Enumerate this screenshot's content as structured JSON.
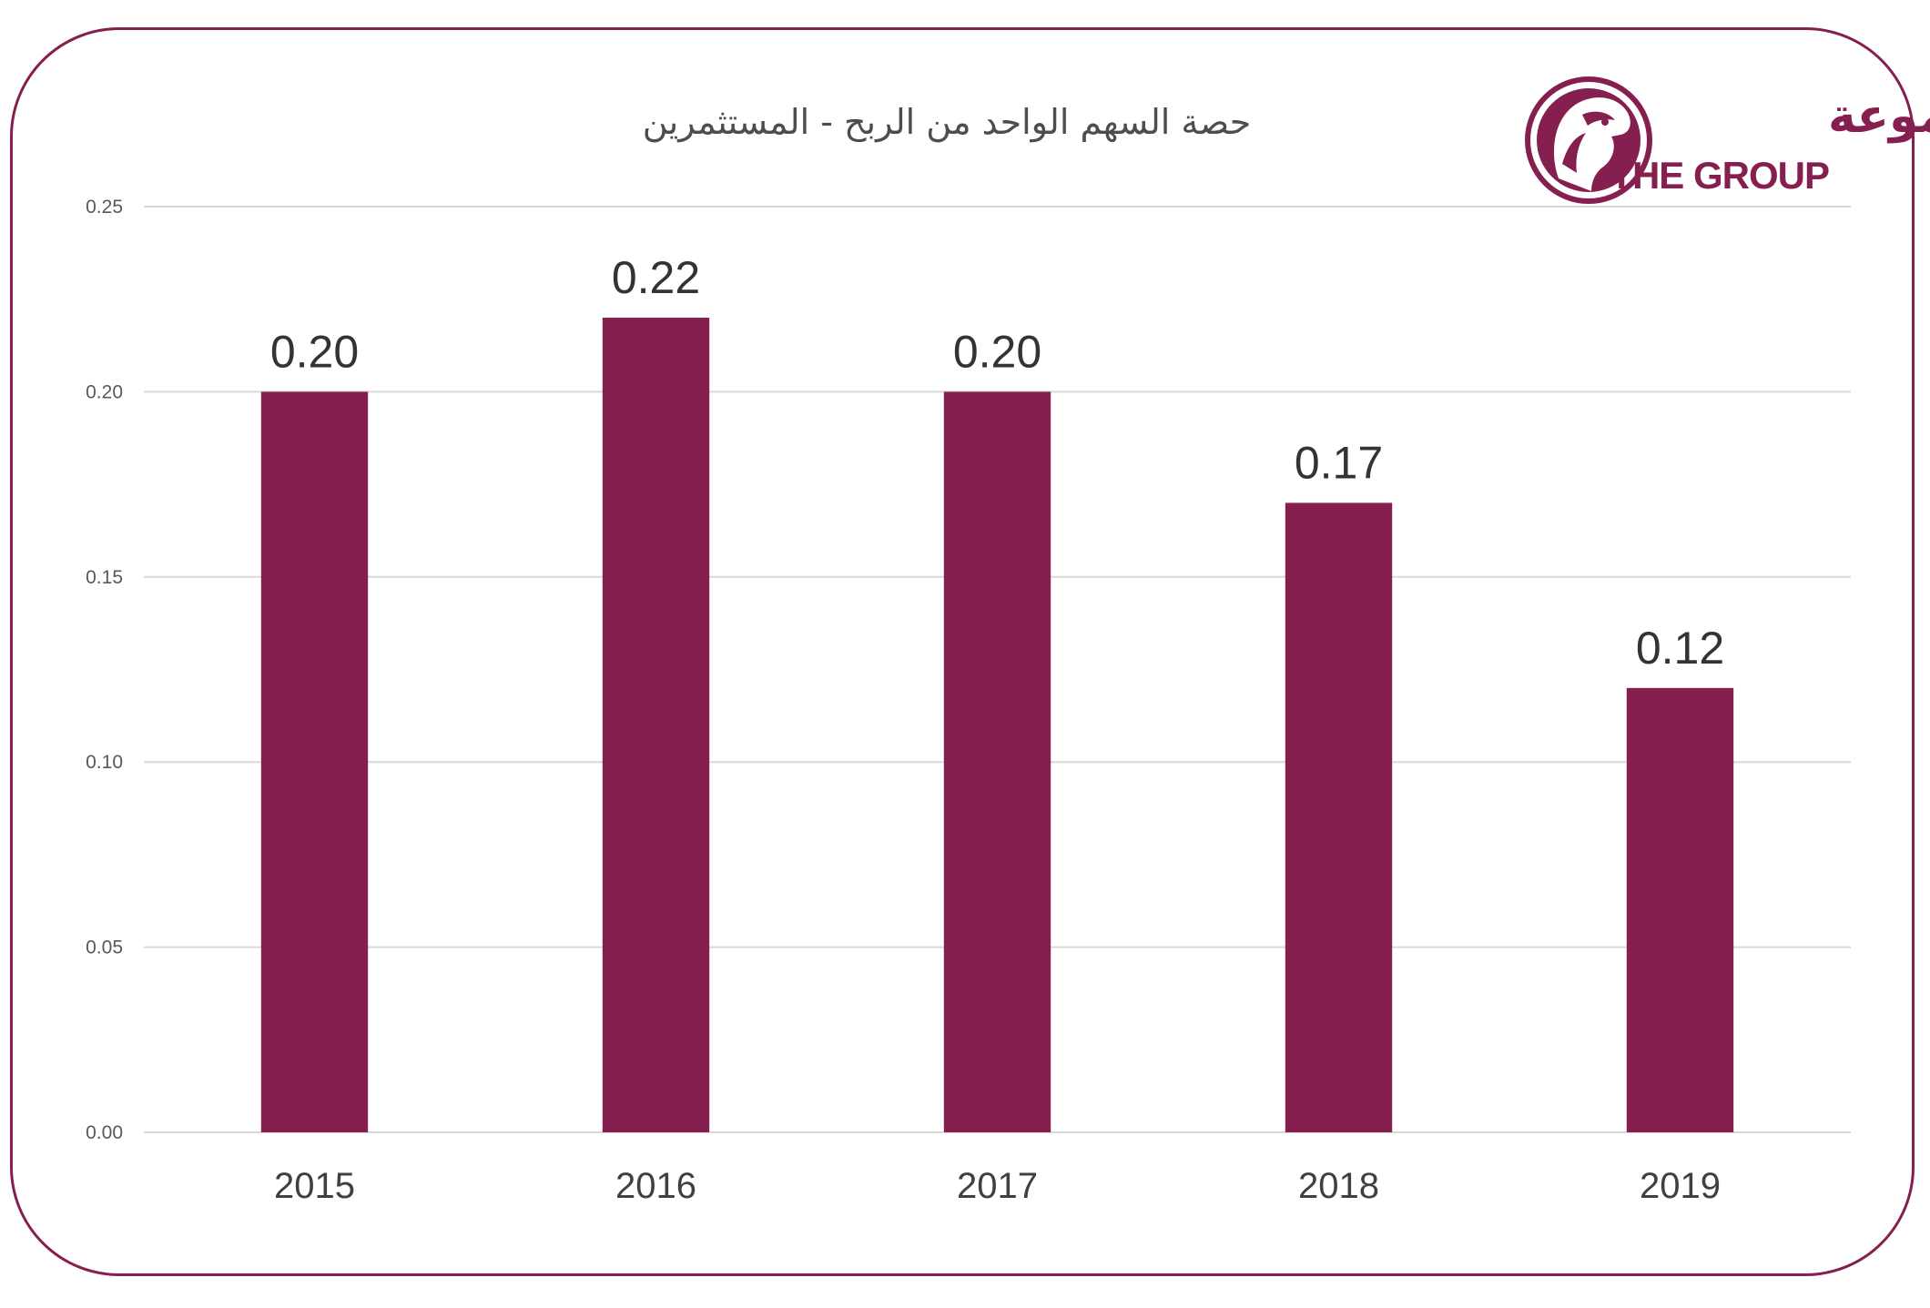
{
  "logo": {
    "arabic_name": "المجموعة",
    "english_name": "THE GROUP"
  },
  "colors": {
    "brand": "#851f50",
    "gridline": "#d9d9d9"
  },
  "chart_data": {
    "type": "bar",
    "title": "حصة السهم الواحد من الربح - المستثمرين",
    "xlabel": "",
    "ylabel": "",
    "categories": [
      "2015",
      "2016",
      "2017",
      "2018",
      "2019"
    ],
    "values": [
      0.2,
      0.22,
      0.2,
      0.17,
      0.12
    ],
    "data_labels": [
      "0.20",
      "0.22",
      "0.20",
      "0.17",
      "0.12"
    ],
    "ylim": [
      0,
      0.25
    ],
    "y_ticks": [
      "0.00",
      "0.05",
      "0.10",
      "0.15",
      "0.20",
      "0.25"
    ],
    "y_tick_values": [
      0,
      0.05,
      0.1,
      0.15,
      0.2,
      0.25
    ],
    "grid": true,
    "legend": "none"
  }
}
